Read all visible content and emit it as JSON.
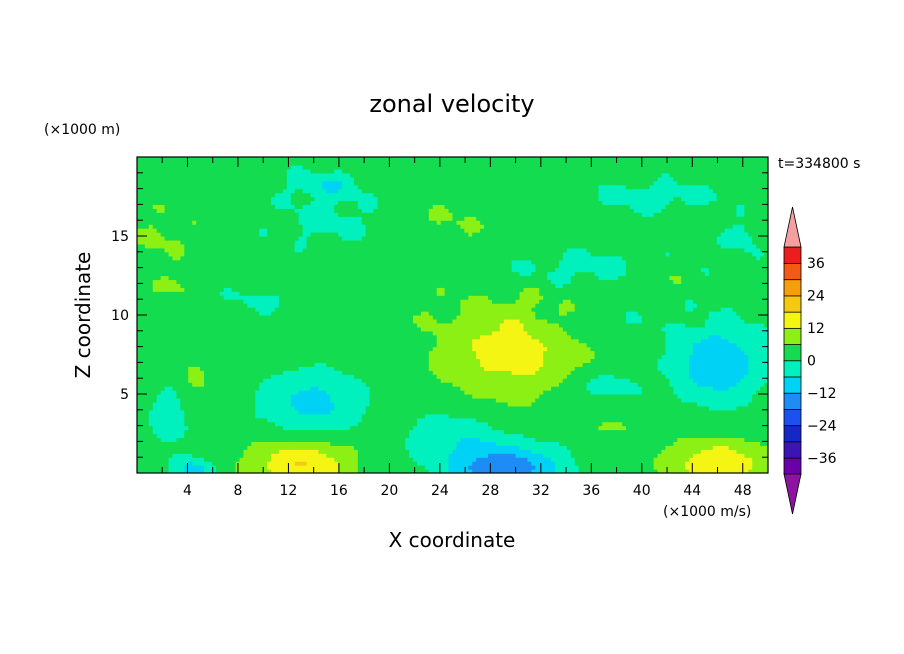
{
  "chart_data": {
    "type": "heatmap",
    "title": "zonal velocity",
    "xlabel": "X coordinate",
    "ylabel": "Z coordinate",
    "x_unit": "(×1000 m/s)",
    "y_unit": "(×1000 m)",
    "time_label": "t=334800 s",
    "xlim": [
      0,
      50
    ],
    "ylim": [
      0,
      20
    ],
    "x_ticks": [
      4,
      8,
      12,
      16,
      20,
      24,
      28,
      32,
      36,
      40,
      44,
      48
    ],
    "y_ticks": [
      5,
      10,
      15
    ],
    "colorbar": {
      "levels": [
        -42,
        -36,
        -30,
        -24,
        -18,
        -12,
        -6,
        0,
        6,
        12,
        18,
        24,
        30,
        36,
        42
      ],
      "labels": [
        "36",
        "24",
        "12",
        "0",
        "−12",
        "−24",
        "−36"
      ],
      "label_values": [
        36,
        24,
        12,
        0,
        -12,
        -24,
        -36
      ],
      "colors": [
        "#6a00a8",
        "#3c14b4",
        "#1428c8",
        "#1e50f0",
        "#1e8cf5",
        "#00d2f5",
        "#00f0be",
        "#14dc50",
        "#8cf014",
        "#f5f514",
        "#f5c814",
        "#f5a00a",
        "#f55a14",
        "#eb1e1e"
      ],
      "under_color": "#8c14a0",
      "over_color": "#f5a0a0"
    },
    "field": {
      "background": 3,
      "features": [
        {
          "x": 29.5,
          "z": 7.8,
          "sx": 5.5,
          "sz": 3.0,
          "a": 12
        },
        {
          "x": 13,
          "z": 0.6,
          "sx": 4.0,
          "sz": 1.5,
          "a": 15
        },
        {
          "x": 46,
          "z": 0.6,
          "sx": 4.0,
          "sz": 1.5,
          "a": 14
        },
        {
          "x": 29,
          "z": 0.3,
          "sx": 4.5,
          "sz": 1.5,
          "a": -20
        },
        {
          "x": 4.5,
          "z": 0.2,
          "sx": 1.5,
          "sz": 0.8,
          "a": -12
        },
        {
          "x": 14,
          "z": 4.5,
          "sx": 4.0,
          "sz": 2.0,
          "a": -11
        },
        {
          "x": 46,
          "z": 7.0,
          "sx": 3.5,
          "sz": 2.5,
          "a": -14
        },
        {
          "x": 2.5,
          "z": 3.5,
          "sx": 1.5,
          "sz": 2.0,
          "a": -7
        },
        {
          "x": 25,
          "z": 2.5,
          "sx": 4.0,
          "sz": 1.5,
          "a": -7
        },
        {
          "x": 37,
          "z": 5.5,
          "sx": 3.0,
          "sz": 1.0,
          "a": -6
        },
        {
          "x": 4.5,
          "z": 6.0,
          "sx": 1.2,
          "sz": 1.5,
          "a": 4
        },
        {
          "x": 8,
          "z": 7.5,
          "sx": 1.5,
          "sz": 1.0,
          "a": 3
        },
        {
          "x": 38,
          "z": 3.0,
          "sx": 2.0,
          "sz": 0.9,
          "a": 4
        },
        {
          "x": 3,
          "z": 11.8,
          "sx": 2.0,
          "sz": 0.6,
          "a": 4
        },
        {
          "x": 15,
          "z": 16,
          "sx": 4.0,
          "sz": 1.5,
          "a": -5
        },
        {
          "x": 15,
          "z": 18.3,
          "sx": 3.0,
          "sz": 0.9,
          "a": -8
        },
        {
          "x": 36,
          "z": 13,
          "sx": 7.0,
          "sz": 1.2,
          "a": -5
        },
        {
          "x": 41,
          "z": 17.5,
          "sx": 5.0,
          "sz": 1.0,
          "a": -6
        },
        {
          "x": 48,
          "z": 15,
          "sx": 1.5,
          "sz": 1.0,
          "a": -6
        },
        {
          "x": 2,
          "z": 15,
          "sx": 2.0,
          "sz": 1.5,
          "a": 4
        },
        {
          "x": 25,
          "z": 16,
          "sx": 3.0,
          "sz": 1.2,
          "a": 3
        },
        {
          "x": 41,
          "z": 12.5,
          "sx": 2.5,
          "sz": 1.2,
          "a": 4
        },
        {
          "x": 10,
          "z": 11,
          "sx": 3.0,
          "sz": 0.8,
          "a": -4
        },
        {
          "x": 36,
          "z": 9.5,
          "sx": 5.0,
          "sz": 1.2,
          "a": -3
        }
      ]
    }
  }
}
